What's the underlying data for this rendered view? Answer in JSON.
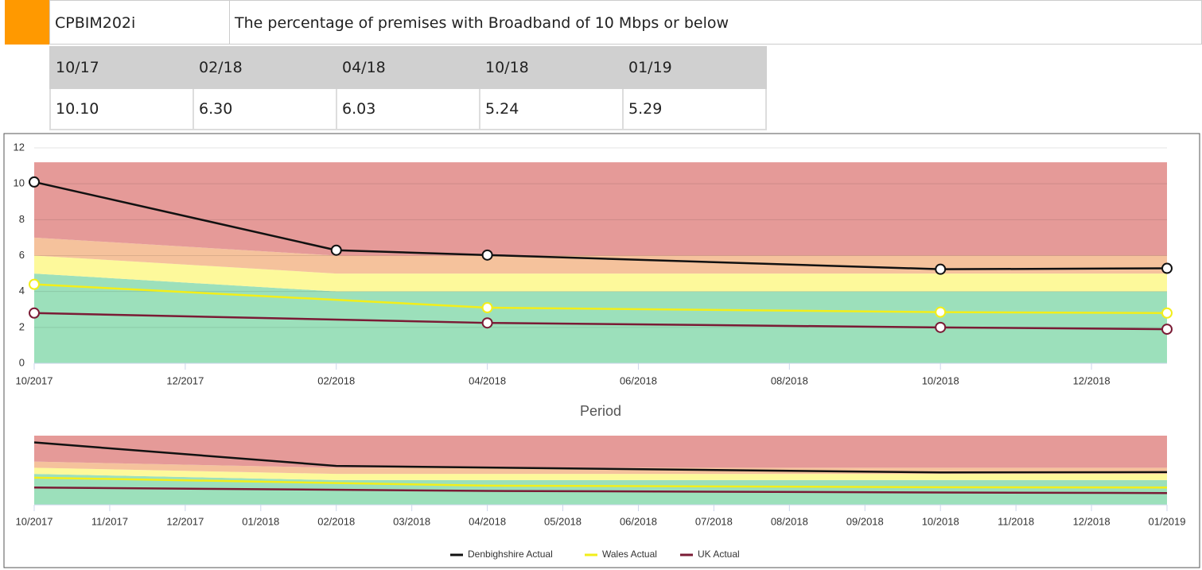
{
  "header": {
    "code": "CPBIM202i",
    "title": "The percentage of premises with Broadband of 10 Mbps or below"
  },
  "table": {
    "columns": [
      "10/17",
      "02/18",
      "04/18",
      "10/18",
      "01/19"
    ],
    "rows": [
      [
        "10.10",
        "6.30",
        "6.03",
        "5.24",
        "5.29"
      ]
    ]
  },
  "chart_data": {
    "type": "line",
    "x_label": "Period",
    "xlim": [
      "10/2017",
      "01/2019"
    ],
    "xticks": [
      "10/2017",
      "12/2017",
      "02/2018",
      "04/2018",
      "06/2018",
      "08/2018",
      "10/2018",
      "12/2018"
    ],
    "ylim": [
      0,
      12
    ],
    "yticks": [
      0,
      2,
      4,
      6,
      8,
      10,
      12
    ],
    "grid": true,
    "legend": "bottom",
    "series": [
      {
        "name": "Denbighshire Actual",
        "color": "#111111",
        "x": [
          "10/2017",
          "02/2018",
          "04/2018",
          "10/2018",
          "01/2019"
        ],
        "values": [
          10.1,
          6.3,
          6.03,
          5.24,
          5.29
        ]
      },
      {
        "name": "Wales Actual",
        "color": "#f2ee1a",
        "x": [
          "10/2017",
          "04/2018",
          "10/2018",
          "01/2019"
        ],
        "values": [
          4.4,
          3.1,
          2.85,
          2.8
        ]
      },
      {
        "name": "UK Actual",
        "color": "#7a1b35",
        "x": [
          "10/2017",
          "04/2018",
          "10/2018",
          "01/2019"
        ],
        "values": [
          2.8,
          2.25,
          2.0,
          1.9
        ]
      }
    ],
    "bands": {
      "x": [
        "10/2017",
        "02/2018",
        "01/2019"
      ],
      "layers": [
        {
          "color": "#9ce0bb",
          "values": [
            5,
            4,
            4
          ]
        },
        {
          "color": "#fdf99b",
          "values": [
            1,
            1,
            1
          ]
        },
        {
          "color": "#f5c29c",
          "values": [
            1,
            1,
            1
          ]
        },
        {
          "color": "#e59a98",
          "values": [
            4.2,
            5.2,
            5.2
          ]
        }
      ]
    },
    "navigator": {
      "xticks": [
        "10/2017",
        "11/2017",
        "12/2017",
        "01/2018",
        "02/2018",
        "03/2018",
        "04/2018",
        "05/2018",
        "06/2018",
        "07/2018",
        "08/2018",
        "09/2018",
        "10/2018",
        "11/2018",
        "12/2018",
        "01/2019"
      ]
    }
  }
}
